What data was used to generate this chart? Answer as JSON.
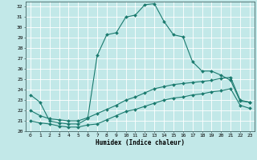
{
  "xlabel": "Humidex (Indice chaleur)",
  "bg_color": "#c2e8e8",
  "grid_color": "#ffffff",
  "line_color": "#1a7a6e",
  "xlim": [
    -0.5,
    23.5
  ],
  "ylim": [
    20.0,
    32.5
  ],
  "yticks": [
    20,
    21,
    22,
    23,
    24,
    25,
    26,
    27,
    28,
    29,
    30,
    31,
    32
  ],
  "xticks": [
    0,
    1,
    2,
    3,
    4,
    5,
    6,
    7,
    8,
    9,
    10,
    11,
    12,
    13,
    14,
    15,
    16,
    17,
    18,
    19,
    20,
    21,
    22,
    23
  ],
  "line1_x": [
    0,
    1,
    2,
    3,
    4,
    5,
    6,
    7,
    8,
    9,
    10,
    11,
    12,
    13,
    14,
    15,
    16,
    17,
    18,
    19,
    20,
    21,
    22,
    23
  ],
  "line1_y": [
    23.5,
    22.8,
    21.0,
    20.8,
    20.7,
    20.7,
    21.2,
    27.3,
    29.3,
    29.5,
    31.0,
    31.2,
    32.2,
    32.3,
    30.6,
    29.3,
    29.1,
    26.7,
    25.8,
    25.8,
    25.4,
    24.9,
    22.9,
    22.8
  ],
  "line2_x": [
    0,
    1,
    2,
    3,
    4,
    5,
    6,
    7,
    8,
    9,
    10,
    11,
    12,
    13,
    14,
    15,
    16,
    17,
    18,
    19,
    20,
    21,
    22,
    23
  ],
  "line2_y": [
    22.0,
    21.5,
    21.2,
    21.1,
    21.0,
    21.0,
    21.3,
    21.7,
    22.1,
    22.5,
    23.0,
    23.3,
    23.7,
    24.1,
    24.3,
    24.5,
    24.6,
    24.7,
    24.8,
    24.9,
    25.1,
    25.2,
    23.0,
    22.8
  ],
  "line3_x": [
    0,
    1,
    2,
    3,
    4,
    5,
    6,
    7,
    8,
    9,
    10,
    11,
    12,
    13,
    14,
    15,
    16,
    17,
    18,
    19,
    20,
    21,
    22,
    23
  ],
  "line3_y": [
    21.0,
    20.8,
    20.7,
    20.5,
    20.4,
    20.4,
    20.6,
    20.7,
    21.1,
    21.5,
    21.9,
    22.1,
    22.4,
    22.7,
    23.0,
    23.2,
    23.3,
    23.5,
    23.6,
    23.8,
    23.9,
    24.1,
    22.5,
    22.2
  ]
}
